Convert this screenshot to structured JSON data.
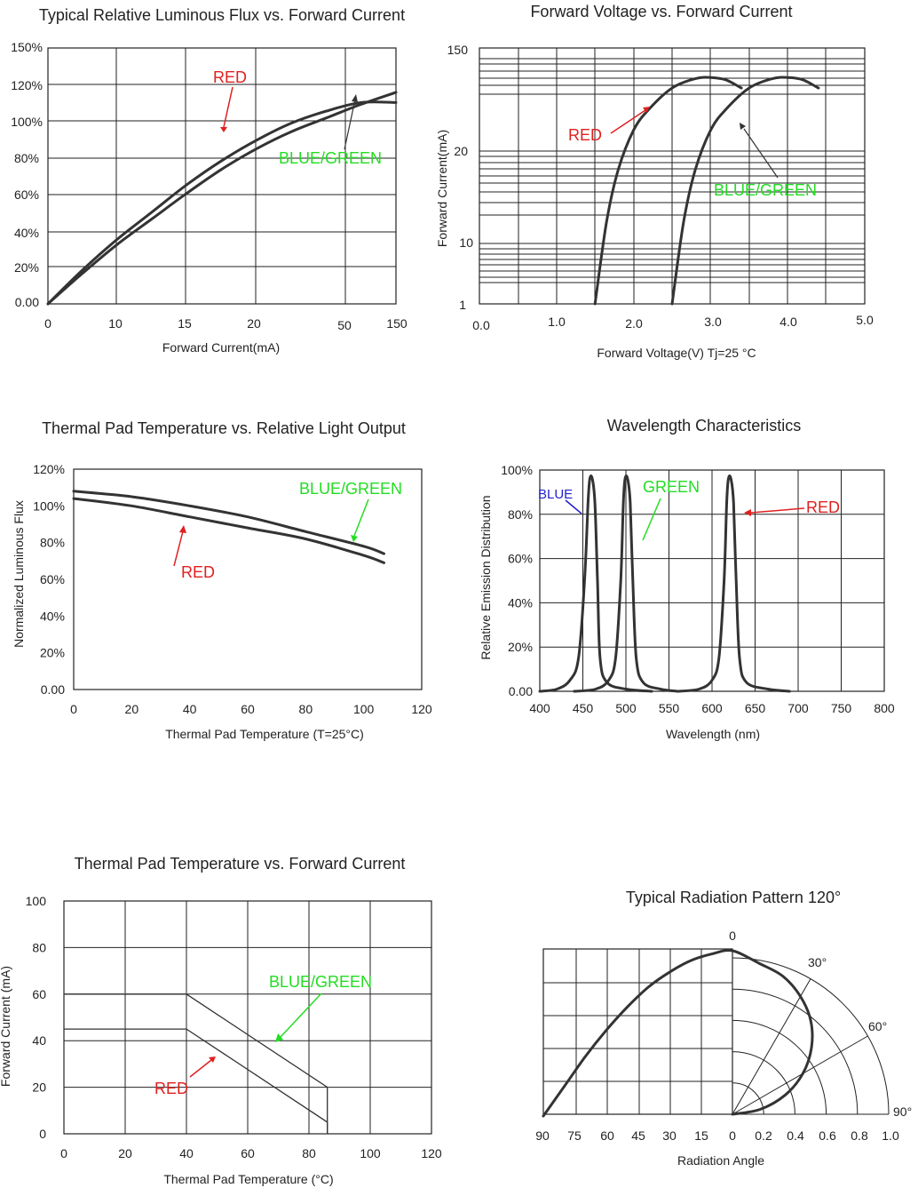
{
  "chart_data": [
    {
      "type": "line",
      "title": "Typical Relative Luminous Flux vs. Forward Current",
      "xlabel": "Forward Current(mA)",
      "ylabel": "",
      "x_tick_labels": [
        "0",
        "10",
        "15",
        "20",
        "50",
        "150"
      ],
      "y_tick_labels": [
        "0.00",
        "20%",
        "40%",
        "60%",
        "80%",
        "100%",
        "120%",
        "150%"
      ],
      "grid": true,
      "series": [
        {
          "name": "RED",
          "color": "#e02020",
          "x_index": [
            0,
            0.5,
            1,
            1.5,
            2,
            2.5,
            3,
            3.5,
            4,
            4.5,
            5
          ],
          "values": [
            0,
            20,
            38,
            54,
            70,
            84,
            96,
            106,
            113,
            118,
            118
          ]
        },
        {
          "name": "BLUE/GREEN",
          "color": "#22dd22",
          "x_index": [
            0,
            0.5,
            1,
            1.5,
            2,
            2.5,
            3,
            3.5,
            4,
            4.5,
            5
          ],
          "values": [
            0,
            18,
            35,
            50,
            65,
            79,
            91,
            101,
            109,
            117,
            124
          ]
        }
      ]
    },
    {
      "type": "line",
      "title": "Forward Voltage vs. Forward Current",
      "xlabel": "Forward Voltage(V) Tj=25 °C",
      "ylabel": "Forward Current(mA)",
      "x_tick_labels": [
        "0.0",
        "1.0",
        "2.0",
        "3.0",
        "4.0",
        "5.0"
      ],
      "y_tick_labels": [
        "1",
        "10",
        "20",
        "150"
      ],
      "xlim": [
        0,
        5
      ],
      "grid": true,
      "series": [
        {
          "name": "RED",
          "color": "#e02020",
          "x": [
            1.5,
            1.65,
            1.8,
            2.0,
            2.2,
            2.5,
            2.8,
            3.0,
            3.2,
            3.4
          ],
          "y_rel": [
            0.0,
            0.35,
            0.57,
            0.74,
            0.83,
            0.92,
            0.96,
            0.965,
            0.955,
            0.92
          ]
        },
        {
          "name": "BLUE/GREEN",
          "color": "#22dd22",
          "x": [
            2.5,
            2.65,
            2.8,
            3.0,
            3.2,
            3.5,
            3.8,
            4.0,
            4.2,
            4.4
          ],
          "y_rel": [
            0.0,
            0.35,
            0.57,
            0.74,
            0.83,
            0.92,
            0.96,
            0.965,
            0.955,
            0.92
          ]
        }
      ]
    },
    {
      "type": "line",
      "title": "Thermal Pad Temperature vs. Relative Light Output",
      "xlabel": "Thermal Pad Temperature (T=25°C)",
      "ylabel": "Normalized Luminous Flux",
      "x_tick_labels": [
        "0",
        "20",
        "40",
        "60",
        "80",
        "100",
        "120"
      ],
      "y_tick_labels": [
        "0.00",
        "20%",
        "40%",
        "60%",
        "80%",
        "100%",
        "120%"
      ],
      "xlim": [
        0,
        120
      ],
      "ylim": [
        0,
        120
      ],
      "grid": false,
      "series": [
        {
          "name": "BLUE/GREEN",
          "color": "#22dd22",
          "x": [
            0,
            20,
            40,
            60,
            80,
            100,
            107
          ],
          "values": [
            108,
            105,
            100,
            94,
            86,
            78,
            74
          ]
        },
        {
          "name": "RED",
          "color": "#e02020",
          "x": [
            0,
            20,
            40,
            60,
            80,
            100,
            107
          ],
          "values": [
            104,
            100,
            94,
            88,
            82,
            73,
            69
          ]
        }
      ]
    },
    {
      "type": "line",
      "title": "Wavelength Characteristics",
      "xlabel": "Wavelength (nm)",
      "ylabel": "Relative Emission Distribution",
      "x_tick_labels": [
        "400",
        "450",
        "500",
        "550",
        "600",
        "650",
        "700",
        "750",
        "800"
      ],
      "y_tick_labels": [
        "0.00",
        "20%",
        "40%",
        "60%",
        "80%",
        "100%"
      ],
      "xlim": [
        400,
        800
      ],
      "ylim": [
        0,
        100
      ],
      "grid": true,
      "series": [
        {
          "name": "BLUE",
          "color": "#2222cc",
          "x": [
            400,
            420,
            435,
            445,
            452,
            456,
            458,
            461,
            464,
            467,
            470,
            478,
            500,
            530
          ],
          "values": [
            0,
            1,
            5,
            15,
            50,
            85,
            96,
            96,
            85,
            50,
            15,
            4,
            1,
            0
          ]
        },
        {
          "name": "GREEN",
          "color": "#22dd22",
          "x": [
            440,
            465,
            480,
            488,
            494,
            497,
            499,
            502,
            505,
            508,
            512,
            520,
            540,
            560
          ],
          "values": [
            0,
            1,
            5,
            15,
            50,
            85,
            96,
            96,
            85,
            50,
            15,
            4,
            1,
            0
          ]
        },
        {
          "name": "RED",
          "color": "#e02020",
          "x": [
            560,
            585,
            600,
            608,
            614,
            617,
            619,
            622,
            625,
            628,
            632,
            640,
            665,
            690
          ],
          "values": [
            0,
            1,
            5,
            15,
            50,
            85,
            96,
            96,
            85,
            50,
            15,
            4,
            1,
            0
          ]
        }
      ]
    },
    {
      "type": "line",
      "title": "Thermal Pad Temperature vs. Forward Current",
      "xlabel": "Thermal Pad Temperature (°C)",
      "ylabel": "Forward Current (mA)",
      "x_tick_labels": [
        "0",
        "20",
        "40",
        "60",
        "80",
        "100",
        "120"
      ],
      "y_tick_labels": [
        "0",
        "20",
        "40",
        "60",
        "80",
        "100"
      ],
      "xlim": [
        0,
        120
      ],
      "ylim": [
        0,
        100
      ],
      "grid": true,
      "series": [
        {
          "name": "BLUE/GREEN",
          "color": "#22dd22",
          "x": [
            0,
            40,
            86,
            86
          ],
          "values": [
            60,
            60,
            20,
            0
          ]
        },
        {
          "name": "RED",
          "color": "#e02020",
          "x": [
            0,
            40,
            86,
            86
          ],
          "values": [
            45,
            45,
            5,
            0
          ]
        }
      ]
    },
    {
      "type": "line",
      "title": "Typical Radiation Pattern   120°",
      "xlabel": "Radiation Angle",
      "x_tick_labels": [
        "90",
        "75",
        "60",
        "45",
        "30",
        "15",
        "0",
        "0.2",
        "0.4",
        "0.6",
        "0.8",
        "1.0"
      ],
      "angle_labels": [
        "0",
        "30°",
        "60°",
        "90°"
      ],
      "series": [
        {
          "name": "",
          "angle_deg": [
            0,
            10,
            20,
            30,
            40,
            50,
            60,
            70,
            80,
            90
          ],
          "values": [
            1.0,
            0.98,
            0.94,
            0.87,
            0.78,
            0.66,
            0.52,
            0.36,
            0.18,
            0.0
          ]
        }
      ]
    }
  ]
}
